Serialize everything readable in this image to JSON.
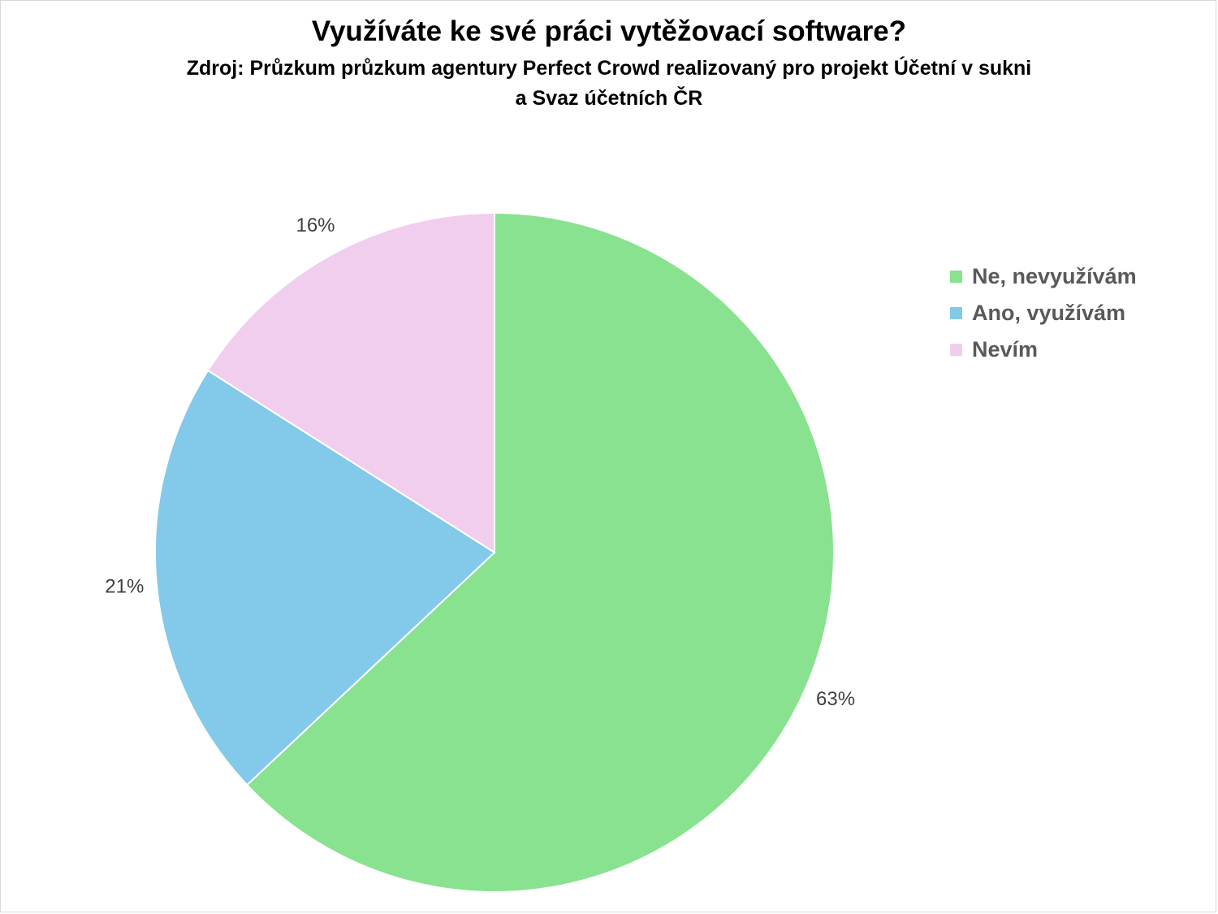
{
  "chart_data": {
    "type": "pie",
    "title": "Využíváte ke své práci vytěžovací software?",
    "subtitle_lines": [
      "Zdroj: Průzkum průzkum agentury Perfect Crowd realizovaný pro projekt Účetní v sukni",
      "a Svaz účetních ČR"
    ],
    "legend_position": "right",
    "slices": [
      {
        "label": "Ne, nevyužívám",
        "value": 63,
        "value_label": "63%",
        "color": "#88e28f"
      },
      {
        "label": "Ano, využívám",
        "value": 21,
        "value_label": "21%",
        "color": "#83c9ea"
      },
      {
        "label": "Nevím",
        "value": 16,
        "value_label": "16%",
        "color": "#f1ceee"
      }
    ]
  }
}
